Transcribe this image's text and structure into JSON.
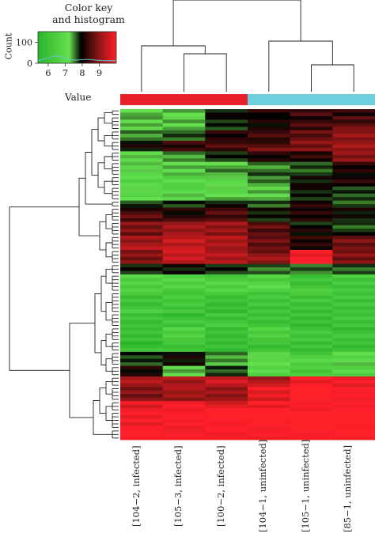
{
  "chart_data": {
    "type": "heatmap",
    "color_key": {
      "title_line1": "Color key",
      "title_line2": "and histogram",
      "ylabel": "Count",
      "xlabel": "Value",
      "x_ticks": [
        "6",
        "7",
        "8",
        "9"
      ],
      "y_ticks": [
        "0",
        "100"
      ],
      "xlim": [
        5.4,
        10.0
      ],
      "ylim": [
        0,
        150
      ],
      "colors": [
        "#2cb52c",
        "#65e04e",
        "#000000",
        "#8e1616",
        "#ff1f28"
      ],
      "histogram_line_color": "#5ec6d8"
    },
    "columns": [
      "[104−2, infected]",
      "[105−3, infected]",
      "[100−2, infected]",
      "[104−1, uninfected]",
      "[105−1, uninfected]",
      "[85−1, uninfected]"
    ],
    "column_groups": [
      "infected",
      "infected",
      "infected",
      "uninfected",
      "uninfected",
      "uninfected"
    ],
    "group_colors": {
      "infected": "#e8202a",
      "uninfected": "#6ccfdb"
    },
    "row_clusters": [
      {
        "rows": 2,
        "values": [
          7.2,
          7.2,
          7.8,
          8.0,
          8.2,
          8.0
        ]
      },
      {
        "rows": 4,
        "values": [
          7.1,
          7.1,
          7.6,
          7.8,
          8.1,
          8.3
        ]
      },
      {
        "rows": 3,
        "values": [
          7.4,
          7.6,
          8.0,
          8.2,
          8.3,
          8.6
        ]
      },
      {
        "rows": 3,
        "values": [
          7.8,
          8.0,
          8.1,
          8.3,
          8.6,
          8.8
        ]
      },
      {
        "rows": 3,
        "values": [
          7.1,
          7.3,
          7.7,
          7.9,
          8.0,
          8.5
        ]
      },
      {
        "rows": 4,
        "values": [
          6.9,
          7.0,
          7.2,
          7.4,
          7.6,
          8.0
        ]
      },
      {
        "rows": 3,
        "values": [
          6.8,
          6.8,
          6.9,
          7.3,
          7.7,
          7.9
        ]
      },
      {
        "rows": 4,
        "values": [
          6.8,
          6.9,
          7.0,
          7.2,
          7.8,
          7.6
        ]
      },
      {
        "rows": 2,
        "values": [
          7.6,
          7.6,
          7.7,
          7.4,
          7.9,
          7.6
        ]
      },
      {
        "rows": 4,
        "values": [
          8.2,
          8.0,
          8.3,
          7.8,
          8.0,
          7.8
        ]
      },
      {
        "rows": 4,
        "values": [
          8.5,
          8.7,
          8.6,
          8.2,
          7.8,
          7.6
        ]
      },
      {
        "rows": 4,
        "values": [
          8.8,
          9.1,
          8.9,
          8.4,
          8.0,
          8.4
        ]
      },
      {
        "rows": 4,
        "values": [
          8.5,
          9.0,
          8.8,
          8.6,
          9.5,
          8.6
        ]
      },
      {
        "rows": 3,
        "values": [
          7.8,
          7.8,
          7.7,
          7.4,
          7.4,
          7.4
        ]
      },
      {
        "rows": 5,
        "values": [
          6.6,
          6.6,
          6.6,
          6.7,
          6.4,
          6.5
        ]
      },
      {
        "rows": 6,
        "values": [
          6.4,
          6.5,
          6.3,
          6.4,
          6.3,
          6.3
        ]
      },
      {
        "rows": 4,
        "values": [
          6.2,
          6.3,
          6.4,
          6.4,
          6.3,
          6.4
        ]
      },
      {
        "rows": 4,
        "values": [
          6.3,
          6.6,
          6.2,
          6.5,
          6.3,
          6.3
        ]
      },
      {
        "rows": 3,
        "values": [
          6.2,
          6.4,
          6.3,
          6.3,
          6.3,
          6.2
        ]
      },
      {
        "rows": 4,
        "values": [
          7.6,
          7.8,
          7.2,
          6.8,
          6.6,
          6.9
        ]
      },
      {
        "rows": 3,
        "values": [
          8.0,
          7.2,
          7.6,
          6.8,
          6.5,
          6.7
        ]
      },
      {
        "rows": 3,
        "values": [
          8.8,
          8.7,
          9.0,
          8.9,
          9.5,
          9.5
        ]
      },
      {
        "rows": 4,
        "values": [
          8.6,
          8.8,
          8.7,
          9.3,
          9.6,
          9.5
        ]
      },
      {
        "rows": 3,
        "values": [
          9.2,
          9.4,
          9.3,
          9.5,
          9.6,
          9.6
        ]
      },
      {
        "rows": 5,
        "values": [
          9.5,
          9.6,
          9.6,
          9.6,
          9.6,
          9.6
        ]
      },
      {
        "rows": 3,
        "values": [
          9.6,
          9.6,
          9.6,
          9.6,
          9.6,
          9.6
        ]
      }
    ]
  }
}
